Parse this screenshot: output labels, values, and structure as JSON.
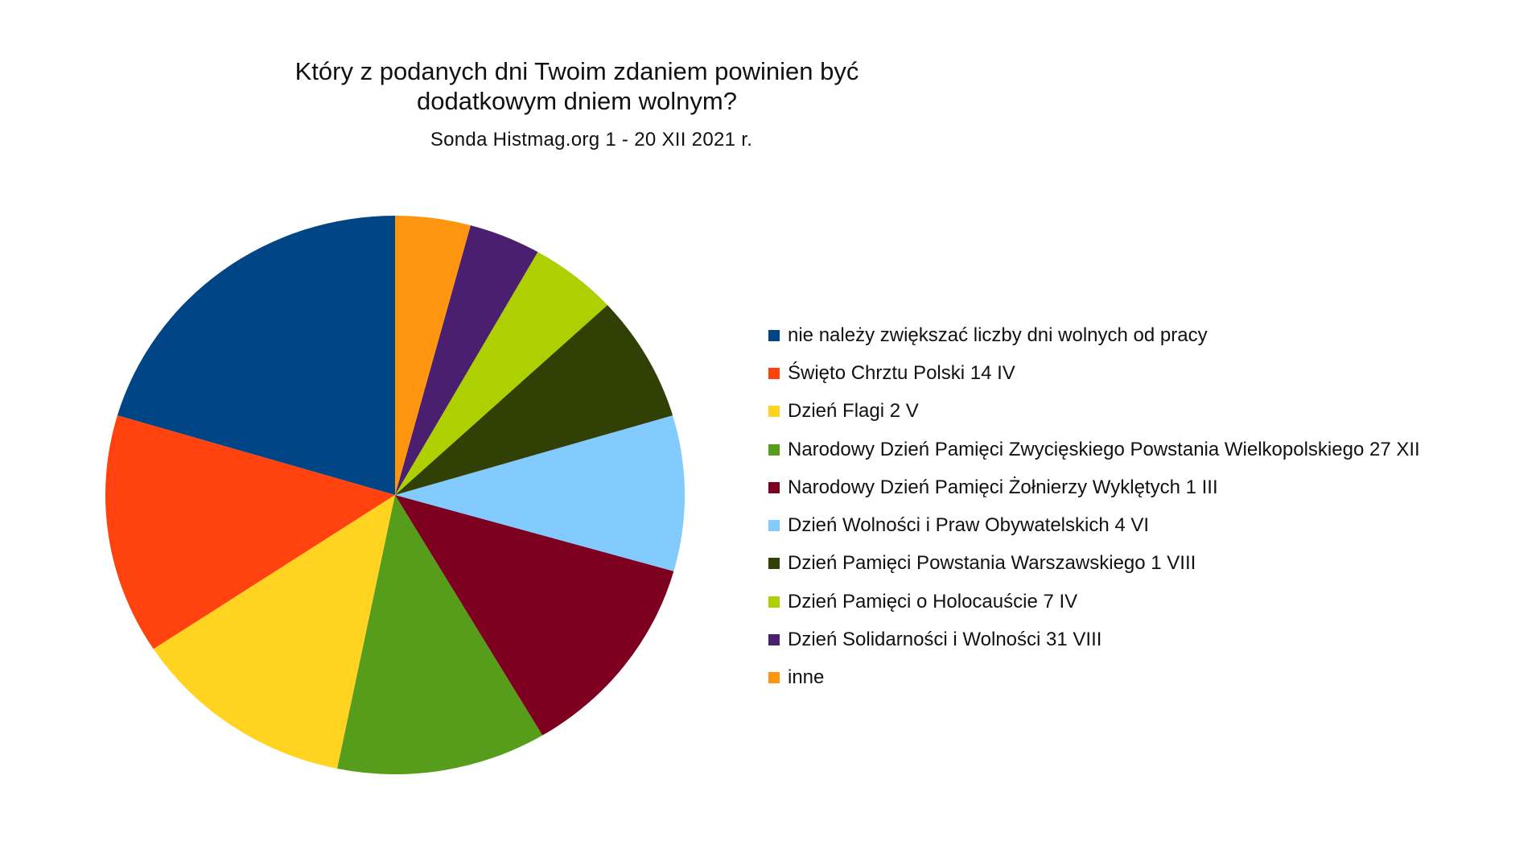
{
  "chart_data": {
    "type": "pie",
    "title_line1": "Który z podanych dni Twoim zdaniem powinien być",
    "title_line2": "dodatkowym dniem wolnym?",
    "subtitle": "Sonda Histmag.org 1 - 20 XII 2021 r.",
    "legend_position": "right",
    "start_angle_deg": 0,
    "direction": "counterclockwise",
    "slices": [
      {
        "label": "nie należy zwiększać liczby dni wolnych od pracy",
        "value": 20.4,
        "color": "#004586"
      },
      {
        "label": "Święto Chrztu Polski 14 IV",
        "value": 13.9,
        "color": "#ff420e"
      },
      {
        "label": "Dzień Flagi 2 V",
        "value": 12.5,
        "color": "#ffd320"
      },
      {
        "label": "Narodowy Dzień Pamięci Zwycięskiego Powstania Wielkopolskiego 27 XII",
        "value": 11.7,
        "color": "#579d1c"
      },
      {
        "label": "Narodowy Dzień Pamięci Żołnierzy Wyklętych 1 III",
        "value": 12.1,
        "color": "#7e0021"
      },
      {
        "label": "Dzień Wolności i Praw Obywatelskich 4 VI",
        "value": 9.0,
        "color": "#83caff"
      },
      {
        "label": "Dzień Pamięci Powstania Warszawskiego 1 VIII",
        "value": 7.3,
        "color": "#314004"
      },
      {
        "label": "Dzień Pamięci o Holocauście 7 IV",
        "value": 4.9,
        "color": "#aecf00"
      },
      {
        "label": "Dzień Solidarności i Wolności 31 VIII",
        "value": 4.0,
        "color": "#4b1f6f"
      },
      {
        "label": "inne",
        "value": 4.2,
        "color": "#ff950e"
      }
    ]
  }
}
